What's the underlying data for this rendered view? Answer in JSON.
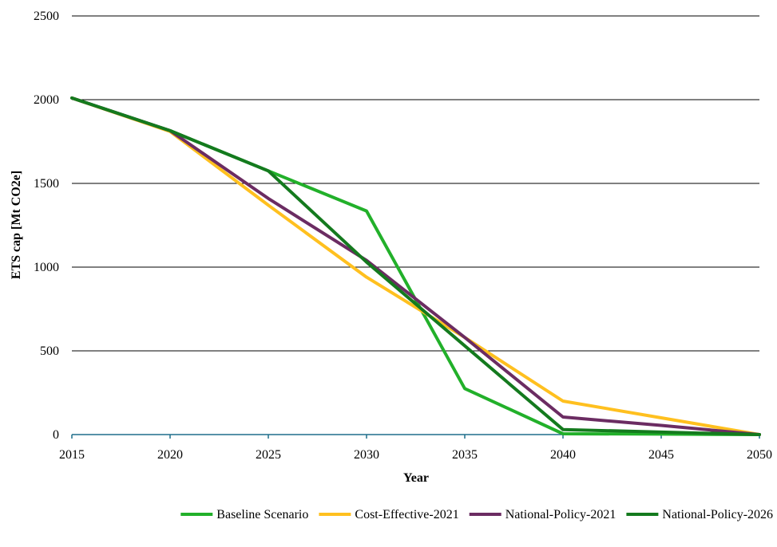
{
  "chart_data": {
    "type": "line",
    "xlabel": "Year",
    "ylabel": "ETS cap [Mt CO2e]",
    "x": [
      2015,
      2020,
      2025,
      2030,
      2035,
      2040,
      2045,
      2050
    ],
    "xlim": [
      2015,
      2050
    ],
    "ylim": [
      0,
      2500
    ],
    "xticks": [
      "2015",
      "2020",
      "2025",
      "2030",
      "2035",
      "2040",
      "2045",
      "2050"
    ],
    "yticks": [
      "0",
      "500",
      "1000",
      "1500",
      "2000",
      "2500"
    ],
    "grid": "horizontal",
    "legend_position": "bottom",
    "series": [
      {
        "name": "Baseline Scenario",
        "color": "#22b02a",
        "x": [
          2015,
          2020,
          2025,
          2030,
          2035,
          2040,
          2045,
          2050
        ],
        "values": [
          2010,
          1815,
          1575,
          1335,
          275,
          5,
          3,
          0
        ]
      },
      {
        "name": "Cost-Effective-2021",
        "color": "#ffc01f",
        "x": [
          2015,
          2020,
          2025,
          2030,
          2035,
          2040,
          2045,
          2050
        ],
        "values": [
          2010,
          1810,
          1370,
          940,
          580,
          200,
          100,
          0
        ]
      },
      {
        "name": "National-Policy-2021",
        "color": "#6b2c62",
        "x": [
          2015,
          2020,
          2025,
          2030,
          2035,
          2040,
          2045,
          2050
        ],
        "values": [
          2010,
          1815,
          1410,
          1040,
          580,
          105,
          55,
          0
        ]
      },
      {
        "name": "National-Policy-2026",
        "color": "#147a1e",
        "x": [
          2015,
          2020,
          2025,
          2030,
          2035,
          2040,
          2045,
          2050
        ],
        "values": [
          2010,
          1815,
          1575,
          1030,
          530,
          30,
          15,
          0
        ]
      }
    ]
  }
}
